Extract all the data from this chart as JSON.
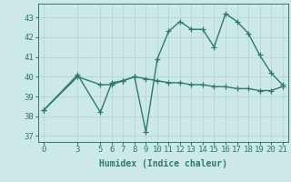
{
  "xlabel": "Humidex (Indice chaleur)",
  "background_color": "#cce8e8",
  "grid_color": "#b8d8d8",
  "line_color": "#2d7a6e",
  "ylim": [
    36.7,
    43.7
  ],
  "xlim": [
    -0.5,
    21.5
  ],
  "yticks": [
    37,
    38,
    39,
    40,
    41,
    42,
    43
  ],
  "xticks": [
    0,
    3,
    5,
    6,
    7,
    8,
    9,
    10,
    11,
    12,
    13,
    14,
    15,
    16,
    17,
    18,
    19,
    20,
    21
  ],
  "line1_x": [
    0,
    3,
    5,
    6,
    7,
    8,
    9,
    10,
    11,
    12,
    13,
    14,
    15,
    16,
    17,
    18,
    19,
    20,
    21
  ],
  "line1_y": [
    38.3,
    40.1,
    38.2,
    39.7,
    39.8,
    40.0,
    37.2,
    40.9,
    42.3,
    42.8,
    42.4,
    42.4,
    41.5,
    43.2,
    42.8,
    42.2,
    41.1,
    40.2,
    39.6
  ],
  "line2_x": [
    0,
    3,
    5,
    6,
    7,
    8,
    9,
    10,
    11,
    12,
    13,
    14,
    15,
    16,
    17,
    18,
    19,
    20,
    21
  ],
  "line2_y": [
    38.3,
    40.0,
    39.6,
    39.6,
    39.8,
    40.0,
    39.9,
    39.8,
    39.7,
    39.7,
    39.6,
    39.6,
    39.5,
    39.5,
    39.4,
    39.4,
    39.3,
    39.3,
    39.5
  ],
  "linewidth": 1.0,
  "marker_size": 4.0,
  "xlabel_fontsize": 7,
  "tick_fontsize": 6.5
}
